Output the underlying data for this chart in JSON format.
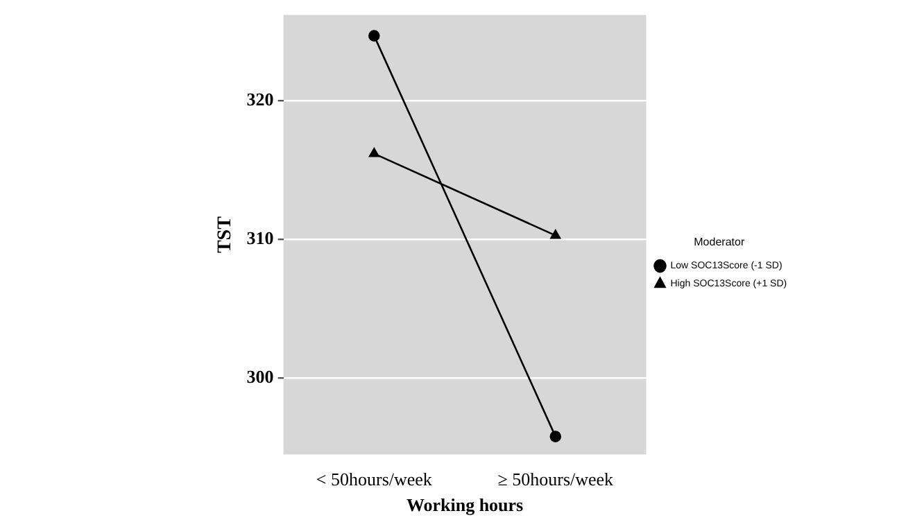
{
  "chart_data": {
    "type": "line",
    "xlabel": "Working hours",
    "ylabel": "TST",
    "legend_title": "Moderator",
    "legend": "right",
    "grid": "y",
    "categories": [
      "< 50hours/week",
      "≥ 50hours/week"
    ],
    "ylim": [
      294.5,
      326.2
    ],
    "yticks": [
      300,
      310,
      320
    ],
    "series": [
      {
        "name": "Low SOC13Score (-1 SD)",
        "color": "#000000",
        "marker": "circle",
        "values": [
          324.7,
          295.8
        ]
      },
      {
        "name": "High SOC13Score (+1 SD)",
        "color": "#000000",
        "marker": "triangle",
        "values": [
          316.2,
          310.3
        ]
      }
    ]
  }
}
